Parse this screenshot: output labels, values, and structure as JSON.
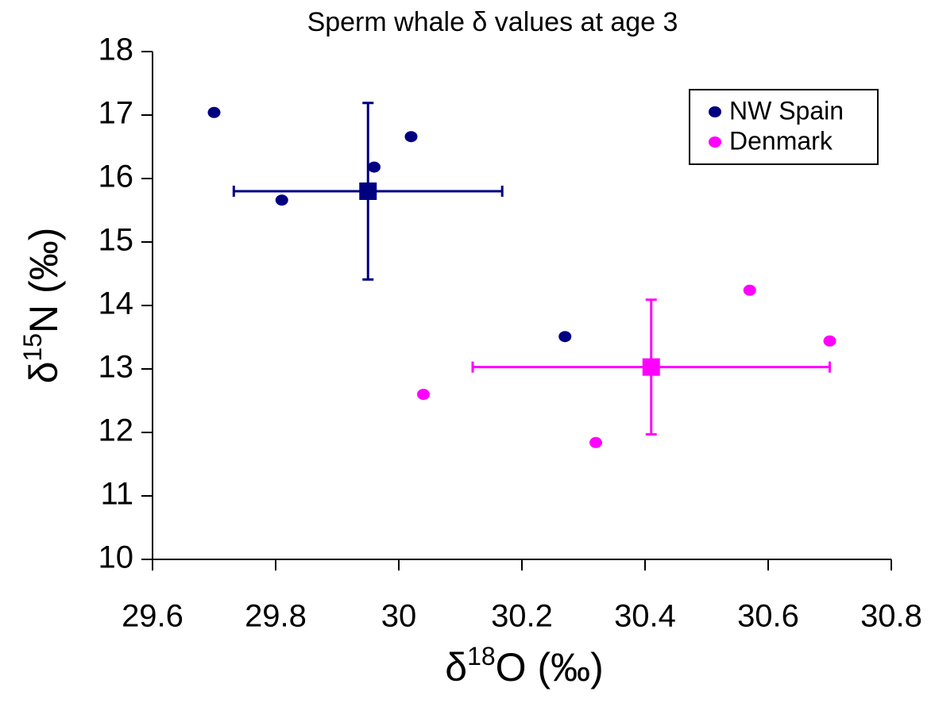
{
  "chart_data": {
    "type": "scatter",
    "title": "Sperm whale δ values at age 3",
    "x_label": {
      "symbol": "δ",
      "superscript": "18",
      "rest": "O (‰)"
    },
    "y_label": {
      "symbol": "δ",
      "superscript": "15",
      "rest": "N (‰)"
    },
    "xlim": [
      29.6,
      30.8
    ],
    "xticks": [
      29.6,
      29.8,
      30,
      30.2,
      30.4,
      30.6,
      30.8
    ],
    "ylim": [
      10,
      18
    ],
    "yticks": [
      10,
      11,
      12,
      13,
      14,
      15,
      16,
      17,
      18
    ],
    "grid": false,
    "legend": "upper right",
    "series": [
      {
        "name": "NW Spain",
        "color": "#000080",
        "x": [
          29.7,
          29.81,
          29.96,
          30.02,
          30.27
        ],
        "values": [
          17.04,
          15.66,
          16.18,
          16.66,
          13.51
        ],
        "mean_x": 29.95,
        "mean_y": 15.8,
        "x_error": 0.218,
        "y_error": 1.39
      },
      {
        "name": "Denmark",
        "color": "#ff00ff",
        "x": [
          30.04,
          30.32,
          30.57,
          30.7
        ],
        "values": [
          12.6,
          11.84,
          14.24,
          13.44
        ],
        "mean_x": 30.41,
        "mean_y": 13.03,
        "x_error": 0.29,
        "y_error": 1.06
      }
    ]
  }
}
